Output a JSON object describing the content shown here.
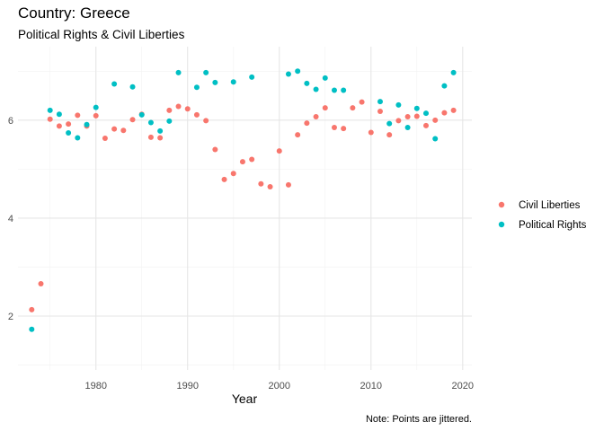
{
  "chart_data": {
    "type": "scatter",
    "title": "Country: Greece",
    "subtitle": "Political Rights & Civil Liberties",
    "xlabel": "Year",
    "ylabel": "",
    "caption": "Note: Points are jittered.",
    "xlim": [
      1971.5,
      2021
    ],
    "ylim": [
      0.9,
      7.5
    ],
    "xticks": [
      1980,
      1990,
      2000,
      2010,
      2020
    ],
    "yticks": [
      2,
      4,
      6
    ],
    "grid": true,
    "legend_position": "right",
    "series": [
      {
        "name": "Civil Liberties",
        "color": "#F8766D",
        "points": [
          [
            1973,
            2.13
          ],
          [
            1974,
            2.66
          ],
          [
            1975,
            6.02
          ],
          [
            1976,
            5.88
          ],
          [
            1977,
            5.92
          ],
          [
            1978,
            6.1
          ],
          [
            1979,
            5.88
          ],
          [
            1980,
            6.09
          ],
          [
            1981,
            5.63
          ],
          [
            1982,
            5.82
          ],
          [
            1983,
            5.79
          ],
          [
            1984,
            6.01
          ],
          [
            1985,
            6.12
          ],
          [
            1986,
            5.65
          ],
          [
            1987,
            5.64
          ],
          [
            1988,
            6.2
          ],
          [
            1989,
            6.28
          ],
          [
            1990,
            6.23
          ],
          [
            1991,
            6.11
          ],
          [
            1992,
            5.99
          ],
          [
            1993,
            5.4
          ],
          [
            1994,
            4.79
          ],
          [
            1995,
            4.91
          ],
          [
            1996,
            5.15
          ],
          [
            1997,
            5.2
          ],
          [
            1998,
            4.7
          ],
          [
            1999,
            4.64
          ],
          [
            2000,
            5.37
          ],
          [
            2001,
            4.68
          ],
          [
            2002,
            5.7
          ],
          [
            2003,
            5.94
          ],
          [
            2004,
            6.07
          ],
          [
            2005,
            6.25
          ],
          [
            2006,
            5.85
          ],
          [
            2007,
            5.83
          ],
          [
            2008,
            6.25
          ],
          [
            2009,
            6.37
          ],
          [
            2010,
            5.75
          ],
          [
            2011,
            6.18
          ],
          [
            2012,
            5.7
          ],
          [
            2013,
            5.99
          ],
          [
            2014,
            6.07
          ],
          [
            2015,
            6.08
          ],
          [
            2016,
            5.89
          ],
          [
            2017,
            6.0
          ],
          [
            2018,
            6.15
          ],
          [
            2019,
            6.2
          ]
        ]
      },
      {
        "name": "Political Rights",
        "color": "#00BFC4",
        "points": [
          [
            1973,
            1.73
          ],
          [
            1975,
            6.2
          ],
          [
            1976,
            6.12
          ],
          [
            1977,
            5.74
          ],
          [
            1978,
            5.64
          ],
          [
            1979,
            5.91
          ],
          [
            1980,
            6.26
          ],
          [
            1982,
            6.74
          ],
          [
            1984,
            6.68
          ],
          [
            1985,
            6.11
          ],
          [
            1986,
            5.95
          ],
          [
            1987,
            5.78
          ],
          [
            1988,
            5.98
          ],
          [
            1989,
            6.97
          ],
          [
            1991,
            6.67
          ],
          [
            1992,
            6.97
          ],
          [
            1993,
            6.77
          ],
          [
            1995,
            6.78
          ],
          [
            1997,
            6.88
          ],
          [
            2001,
            6.94
          ],
          [
            2002,
            7.0
          ],
          [
            2003,
            6.75
          ],
          [
            2004,
            6.63
          ],
          [
            2005,
            6.86
          ],
          [
            2006,
            6.61
          ],
          [
            2007,
            6.61
          ],
          [
            2011,
            6.38
          ],
          [
            2012,
            5.93
          ],
          [
            2013,
            6.31
          ],
          [
            2014,
            5.85
          ],
          [
            2015,
            6.24
          ],
          [
            2016,
            6.14
          ],
          [
            2017,
            5.62
          ],
          [
            2018,
            6.7
          ],
          [
            2019,
            6.97
          ]
        ]
      }
    ]
  }
}
